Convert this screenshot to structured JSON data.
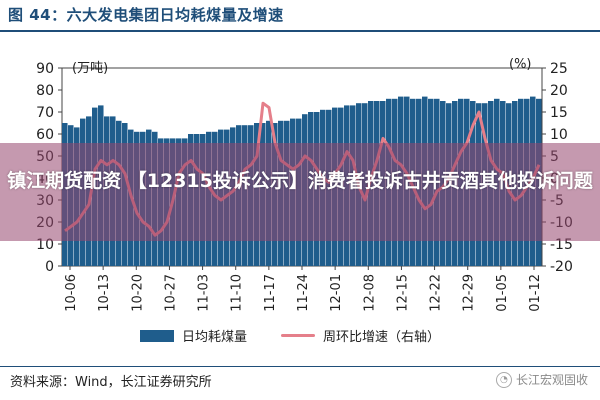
{
  "figure": {
    "title": "图 44：六大发电集团日均耗煤量及增速",
    "source": "资料来源：Wind，长江证券研究所",
    "watermark": "长江宏观固收",
    "overlay_text": "镇江期货配资 【12315投诉公示】消费者投诉古井贡酒其他投诉问题"
  },
  "colors": {
    "bar": "#1f5d8c",
    "line": "#e57f8a",
    "title": "#1f4e79"
  },
  "chart_data": {
    "type": "bar+line",
    "left_unit": "(万吨)",
    "right_unit": "(%)",
    "left_axis": {
      "ylim": [
        0,
        90
      ],
      "ticks": [
        0,
        10,
        20,
        30,
        40,
        50,
        60,
        70,
        80,
        90
      ]
    },
    "right_axis": {
      "ylim": [
        -20,
        25
      ],
      "ticks": [
        -20,
        -15,
        -10,
        -5,
        0,
        5,
        10,
        15,
        20,
        25
      ]
    },
    "x_tick_labels": [
      "10-06",
      "10-13",
      "10-20",
      "10-27",
      "11-03",
      "11-10",
      "11-17",
      "11-24",
      "12-01",
      "12-08",
      "12-15",
      "12-22",
      "12-29",
      "01-05",
      "01-12"
    ],
    "legend": [
      "日均耗煤量",
      "周环比增速（右轴）"
    ],
    "series": [
      {
        "name": "日均耗煤量",
        "axis": "left",
        "values": [
          65,
          64,
          63,
          67,
          68,
          72,
          73,
          68,
          68,
          66,
          65,
          62,
          61,
          61,
          62,
          61,
          58,
          58,
          58,
          58,
          58,
          60,
          60,
          60,
          61,
          61,
          62,
          62,
          63,
          64,
          64,
          64,
          65,
          65,
          66,
          65,
          66,
          66,
          67,
          67,
          69,
          70,
          70,
          71,
          71,
          72,
          72,
          73,
          73,
          74,
          74,
          75,
          75,
          75,
          76,
          76,
          77,
          77,
          76,
          76,
          77,
          76,
          76,
          75,
          74,
          75,
          76,
          76,
          75,
          74,
          74,
          75,
          76,
          75,
          74,
          75,
          76,
          76,
          77,
          76
        ]
      },
      {
        "name": "周环比增速（右轴）",
        "axis": "right",
        "values": [
          -12,
          -11,
          -10,
          -8,
          -6,
          2,
          4,
          3,
          4,
          3,
          1,
          -4,
          -8,
          -10,
          -11,
          -13,
          -12,
          -10,
          -5,
          1,
          3,
          4,
          2,
          1,
          -2,
          -4,
          -5,
          -4,
          -3,
          -1,
          2,
          3,
          5,
          17,
          16,
          8,
          4,
          3,
          2,
          3,
          5,
          4,
          2,
          0,
          -1,
          1,
          3,
          6,
          4,
          -2,
          -5,
          0,
          4,
          9,
          7,
          4,
          3,
          1,
          -2,
          -5,
          -7,
          -6,
          -3,
          -2,
          0,
          3,
          6,
          8,
          12,
          15,
          9,
          4,
          2,
          1,
          -3,
          -5,
          -4,
          -2,
          0,
          3
        ]
      }
    ]
  }
}
